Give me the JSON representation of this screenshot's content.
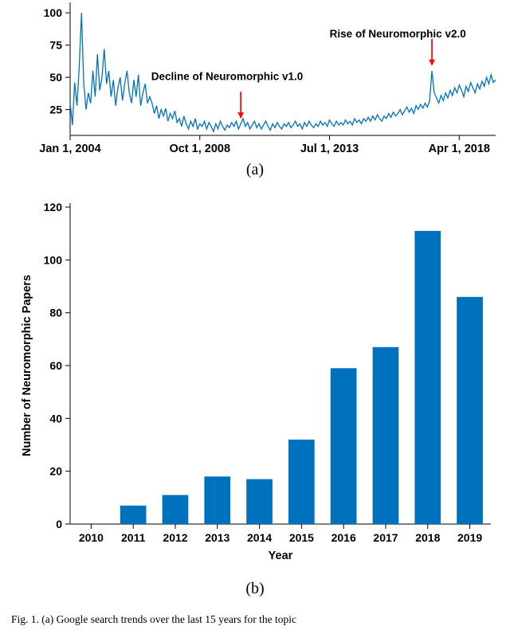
{
  "figure": {
    "subfig_a_label": "(a)",
    "subfig_b_label": "(b)",
    "caption_partial": "Fig. 1.    (a) Google search trends over the last 15 years for the topic"
  },
  "chart_data": [
    {
      "type": "line",
      "description": "Google search trend interest over time",
      "line_color": "#0072BD",
      "ylim": [
        5,
        105
      ],
      "y_ticks": [
        25,
        50,
        75,
        100
      ],
      "x_ticks": [
        {
          "label": "Jan 1, 2004",
          "month": 0
        },
        {
          "label": "Oct 1, 2008",
          "month": 57
        },
        {
          "label": "Jul 1, 2013",
          "month": 114
        },
        {
          "label": "Apr 1, 2018",
          "month": 171
        }
      ],
      "x_unit": "months since Jan 2004",
      "values": [
        30,
        13,
        46,
        28,
        58,
        100,
        45,
        25,
        38,
        30,
        55,
        35,
        68,
        40,
        50,
        72,
        45,
        55,
        35,
        48,
        28,
        42,
        50,
        32,
        45,
        55,
        38,
        30,
        48,
        35,
        52,
        28,
        38,
        45,
        30,
        35,
        30,
        22,
        28,
        18,
        25,
        20,
        26,
        16,
        22,
        18,
        24,
        15,
        18,
        12,
        20,
        14,
        10,
        16,
        12,
        18,
        10,
        14,
        12,
        16,
        10,
        15,
        12,
        8,
        14,
        10,
        16,
        12,
        9,
        13,
        11,
        15,
        12,
        16,
        10,
        14,
        18,
        12,
        15,
        10,
        13,
        16,
        11,
        14,
        10,
        13,
        16,
        12,
        9,
        14,
        11,
        15,
        12,
        10,
        14,
        12,
        15,
        11,
        13,
        16,
        12,
        14,
        10,
        15,
        12,
        16,
        13,
        11,
        14,
        12,
        16,
        13,
        15,
        12,
        17,
        14,
        12,
        16,
        13,
        15,
        13,
        17,
        14,
        16,
        13,
        18,
        15,
        17,
        14,
        18,
        16,
        19,
        16,
        20,
        17,
        21,
        18,
        16,
        20,
        18,
        22,
        19,
        23,
        20,
        22,
        25,
        21,
        24,
        27,
        23,
        26,
        22,
        28,
        25,
        29,
        26,
        30,
        27,
        32,
        55,
        38,
        34,
        30,
        36,
        32,
        38,
        34,
        40,
        36,
        42,
        38,
        44,
        40,
        35,
        43,
        39,
        46,
        42,
        38,
        45,
        41,
        47,
        43,
        50,
        45,
        52,
        46,
        48
      ],
      "annotations": [
        {
          "text": "Decline of Neuromorphic v1.0",
          "arrow_month": 75,
          "arrow_tip_value": 16,
          "text_month": 69,
          "text_value": 48,
          "color": "#ff0000"
        },
        {
          "text": "Rise of Neuromorphic v2.0",
          "arrow_month": 159,
          "arrow_tip_value": 57,
          "text_month": 144,
          "text_value": 81,
          "color": "#ff0000"
        }
      ]
    },
    {
      "type": "bar",
      "categories": [
        "2010",
        "2011",
        "2012",
        "2013",
        "2014",
        "2015",
        "2016",
        "2017",
        "2018",
        "2019"
      ],
      "values": [
        0,
        7,
        11,
        18,
        17,
        32,
        59,
        67,
        111,
        86
      ],
      "xlabel": "Year",
      "ylabel": "Number of Neuromorphic Papers",
      "ylim": [
        0,
        120
      ],
      "y_ticks": [
        0,
        20,
        40,
        60,
        80,
        100,
        120
      ],
      "bar_color": "#0072BD"
    }
  ]
}
